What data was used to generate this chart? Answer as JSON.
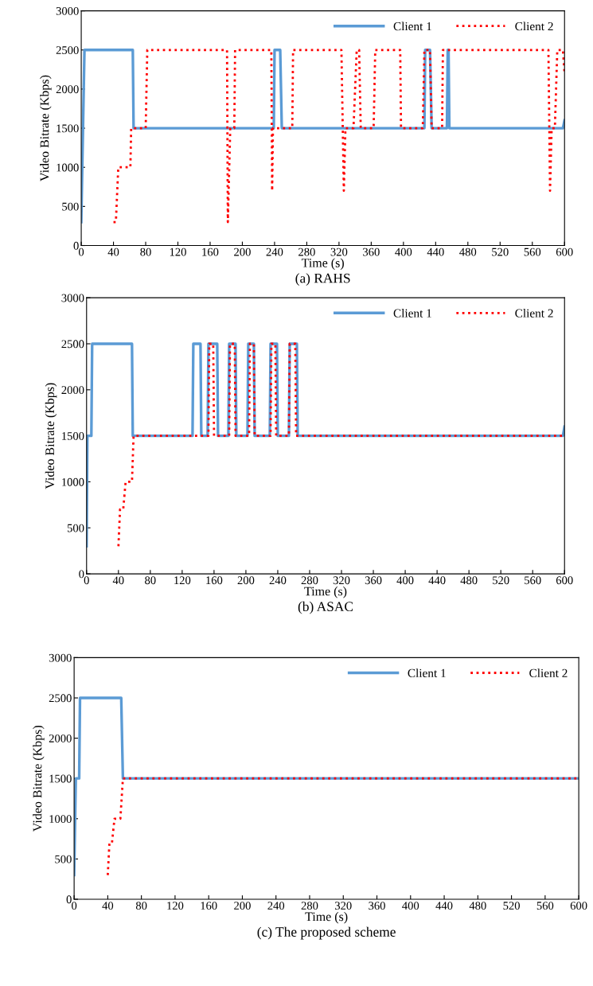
{
  "chart_data": [
    {
      "type": "line",
      "title": "(a) RAHS",
      "xlabel": "Time (s)",
      "ylabel": "Video Bitrate (Kbps)",
      "xlim": [
        0,
        600
      ],
      "xticks": [
        0,
        40,
        80,
        120,
        160,
        200,
        240,
        280,
        320,
        360,
        400,
        440,
        480,
        520,
        560,
        600
      ],
      "ylim": [
        0,
        3000
      ],
      "yticks": [
        0,
        500,
        1000,
        1500,
        2000,
        2500,
        3000
      ],
      "legend": "top right",
      "series": [
        {
          "name": "Client 1",
          "color": "#5b9bd5",
          "line_style": "solid",
          "x": [
            0,
            4,
            64,
            65,
            239,
            240,
            247,
            249,
            426,
            427,
            433,
            435,
            454,
            455,
            456,
            457,
            598,
            600
          ],
          "values": [
            300,
            2500,
            2500,
            1500,
            1500,
            2500,
            2500,
            1500,
            1500,
            2500,
            2500,
            1500,
            1500,
            2500,
            2500,
            1500,
            1500,
            1600
          ]
        },
        {
          "name": "Client 2",
          "color": "#ff0000",
          "line_style": "dotted",
          "x": [
            40,
            43,
            46,
            52,
            61,
            62,
            80,
            82,
            181,
            182,
            185,
            190,
            191,
            236,
            237,
            238,
            262,
            263,
            323,
            326,
            328,
            338,
            342,
            345,
            347,
            363,
            365,
            396,
            397,
            424,
            426,
            433,
            435,
            448,
            449,
            580,
            582,
            584,
            588,
            591,
            598,
            600
          ],
          "values": [
            300,
            300,
            1000,
            1000,
            1000,
            1500,
            1500,
            2500,
            2500,
            300,
            1500,
            1500,
            2500,
            2500,
            700,
            1500,
            1500,
            2500,
            2500,
            700,
            1500,
            1500,
            2500,
            2500,
            1500,
            1500,
            2500,
            2500,
            1500,
            1500,
            2500,
            2500,
            1500,
            1500,
            2500,
            2500,
            700,
            1500,
            1500,
            2500,
            2500,
            2200
          ]
        }
      ]
    },
    {
      "type": "line",
      "title": "(b) ASAC",
      "xlabel": "Time (s)",
      "ylabel": "Video Bitrate (Kbps)",
      "xlim": [
        0,
        600
      ],
      "xticks": [
        0,
        40,
        80,
        120,
        160,
        200,
        240,
        280,
        320,
        360,
        400,
        440,
        480,
        520,
        560,
        600
      ],
      "ylim": [
        0,
        3000
      ],
      "yticks": [
        0,
        500,
        1000,
        1500,
        2000,
        2500,
        3000
      ],
      "legend": "top right",
      "series": [
        {
          "name": "Client 1",
          "color": "#5b9bd5",
          "line_style": "solid",
          "x": [
            0,
            1,
            6,
            7,
            57,
            58,
            133,
            134,
            143,
            144,
            152,
            153,
            164,
            165,
            178,
            179,
            187,
            188,
            202,
            203,
            210,
            211,
            230,
            231,
            239,
            240,
            254,
            255,
            264,
            265,
            598,
            600
          ],
          "values": [
            300,
            1500,
            1500,
            2500,
            2500,
            1500,
            1500,
            2500,
            2500,
            1500,
            1500,
            2500,
            2500,
            1500,
            1500,
            2500,
            2500,
            1500,
            1500,
            2500,
            2500,
            1500,
            1500,
            2500,
            2500,
            1500,
            1500,
            2500,
            2500,
            1500,
            1500,
            1600
          ]
        },
        {
          "name": "Client 2",
          "color": "#ff0000",
          "line_style": "dotted",
          "x": [
            40,
            42,
            46,
            49,
            57,
            59,
            153,
            154,
            159,
            160,
            179,
            180,
            186,
            187,
            204,
            205,
            210,
            211,
            231,
            232,
            237,
            238,
            254,
            255,
            262,
            263,
            600
          ],
          "values": [
            300,
            700,
            700,
            1000,
            1000,
            1500,
            1500,
            2500,
            2500,
            1500,
            1500,
            2500,
            2500,
            1500,
            1500,
            2500,
            2500,
            1500,
            1500,
            2500,
            2500,
            1500,
            1500,
            2500,
            2500,
            1500,
            1500
          ]
        }
      ]
    },
    {
      "type": "line",
      "title": "(c) The proposed scheme",
      "xlabel": "Time (s)",
      "ylabel": "Video Bitrate (Kbps)",
      "xlim": [
        0,
        600
      ],
      "xticks": [
        0,
        40,
        80,
        120,
        160,
        200,
        240,
        280,
        320,
        360,
        400,
        440,
        480,
        520,
        560,
        600
      ],
      "ylim": [
        0,
        3000
      ],
      "yticks": [
        0,
        500,
        1000,
        1500,
        2000,
        2500,
        3000
      ],
      "legend": "top right",
      "series": [
        {
          "name": "Client 1",
          "color": "#5b9bd5",
          "line_style": "solid",
          "x": [
            0,
            2,
            6,
            7,
            56,
            58,
            600
          ],
          "values": [
            300,
            1500,
            1500,
            2500,
            2500,
            1500,
            1500
          ]
        },
        {
          "name": "Client 2",
          "color": "#ff0000",
          "line_style": "dotted",
          "x": [
            40,
            42,
            45,
            48,
            55,
            58,
            600
          ],
          "values": [
            300,
            700,
            700,
            1000,
            1000,
            1500,
            1500
          ]
        }
      ]
    }
  ]
}
